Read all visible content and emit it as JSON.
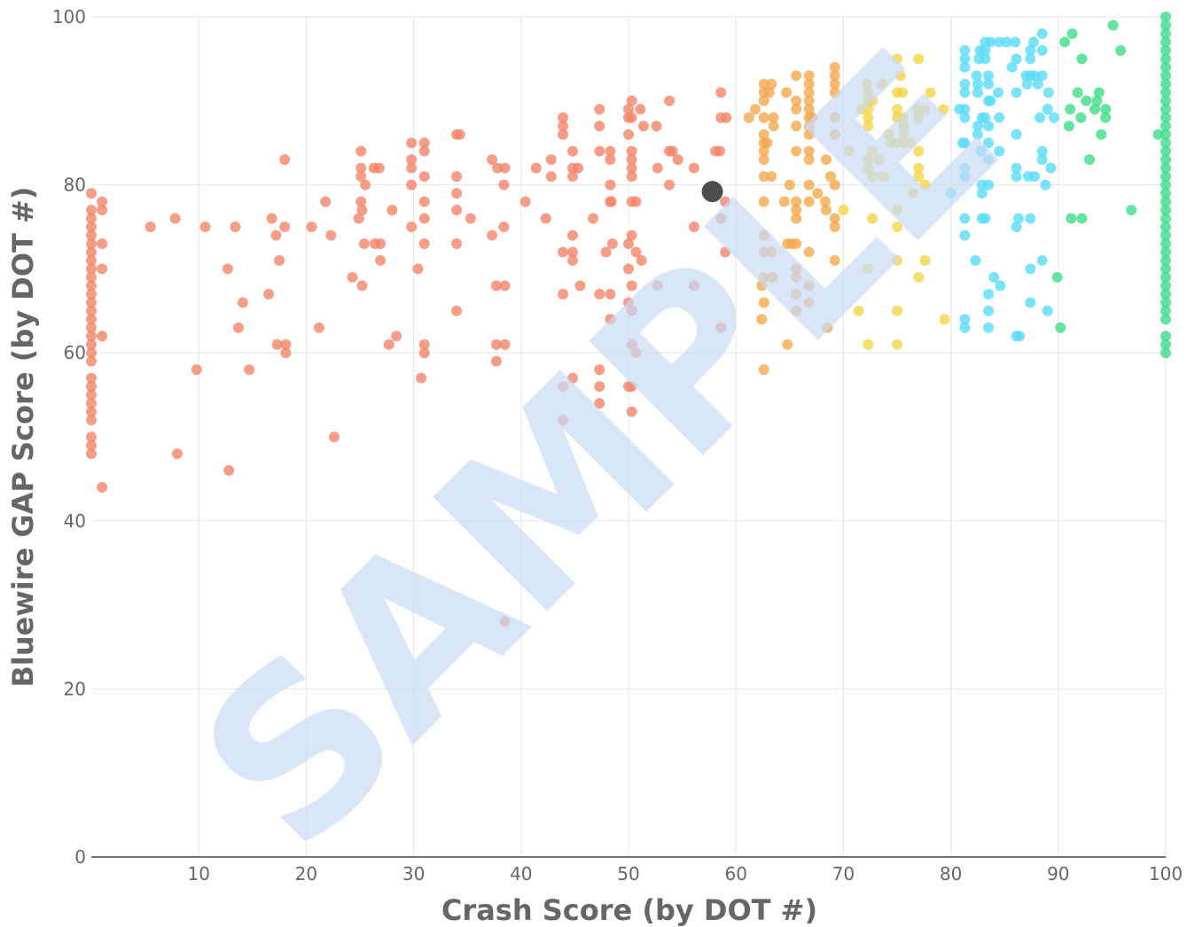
{
  "chart_data": {
    "type": "scatter",
    "x_label": "Crash Score (by DOT #)",
    "y_label": "Bluewire GAP Score (by DOT #)",
    "watermark": "SAMPLE",
    "xlim": [
      0,
      100
    ],
    "ylim": [
      0,
      100
    ],
    "xticks": [
      10,
      20,
      30,
      40,
      50,
      60,
      70,
      80,
      90,
      100
    ],
    "yticks": [
      0,
      20,
      40,
      60,
      80,
      100
    ],
    "grid": true,
    "series": [
      {
        "color": "#f4846a",
        "x": [
          0,
          0,
          0,
          0,
          0,
          0,
          0,
          0,
          0,
          0,
          0,
          0,
          0,
          0,
          0,
          0,
          0,
          0,
          0,
          0,
          0,
          0,
          0,
          0,
          0,
          0,
          0,
          0,
          0,
          1,
          1,
          1,
          1,
          1,
          1,
          5.5,
          7.8,
          8,
          9.8,
          10.6,
          12.7,
          12.8,
          13.4,
          13.7,
          14.1,
          14.7,
          16.5,
          16.8,
          17.2,
          17.3,
          17.5,
          18,
          18,
          18.1,
          18.1,
          20.5,
          21.2,
          21.8,
          22.3,
          22.6,
          24.3,
          24.9,
          25.1,
          25.1,
          25.1,
          25.1,
          25.2,
          25.2,
          25.4,
          25.5,
          26.3,
          26.4,
          26.8,
          26.9,
          26.9,
          27.7,
          28,
          28.4,
          29.8,
          29.8,
          29.8,
          29.8,
          29.8,
          30.4,
          30.7,
          31,
          31,
          31,
          31,
          31,
          31,
          31,
          31,
          34,
          34.3,
          34,
          34,
          34,
          34,
          34,
          35.3,
          37.3,
          37.3,
          37.8,
          37.7,
          37.7,
          37.7,
          38.5,
          38.4,
          38.4,
          38.5,
          38.5,
          38.5,
          40.4,
          41.4,
          42.3,
          42.8,
          42.8,
          43.9,
          43.9,
          43.9,
          43.9,
          43.9,
          43.9,
          43.9,
          44.8,
          44.8,
          44.8,
          44.8,
          44.8,
          44.8,
          44.8,
          45.3,
          45.5,
          46.7,
          47.3,
          47.3,
          47.3,
          47.3,
          47.3,
          47.3,
          47.3,
          47.9,
          48.3,
          48.3,
          48.3,
          48.3,
          48.4,
          48.5,
          48.3,
          48.3,
          50,
          50,
          50,
          50,
          50,
          50,
          50,
          50.3,
          50.3,
          50.3,
          50.3,
          50.3,
          50.3,
          50.3,
          50.3,
          50.3,
          50.3,
          50.3,
          50.3,
          50.3,
          50.7,
          50.7,
          50.7,
          51.1,
          51.2,
          51.4,
          52.6,
          52.7,
          52.7,
          53.8,
          53.8,
          53.8,
          54.1,
          54.6,
          56.1,
          56.1,
          56.1,
          58.1,
          58.6,
          58.6,
          58.5,
          58.6,
          58.6,
          59.1,
          59,
          59
        ],
        "values": [
          79,
          77,
          76,
          75,
          74,
          73,
          72,
          71,
          70,
          69,
          68,
          67,
          66,
          65,
          64,
          63,
          62,
          61,
          60,
          59,
          57,
          56,
          55,
          54,
          53,
          52,
          50,
          49,
          48,
          78,
          77,
          73,
          70,
          62,
          44,
          75,
          76,
          48,
          58,
          75,
          70,
          46,
          75,
          63,
          66,
          58,
          67,
          76,
          74,
          61,
          71,
          83,
          75,
          61,
          60,
          75,
          63,
          78,
          74,
          50,
          69,
          76,
          84,
          82,
          81,
          78,
          77,
          68,
          73,
          80,
          82,
          73,
          82,
          73,
          71,
          61,
          77,
          62,
          85,
          83,
          82,
          80,
          75,
          70,
          57,
          85,
          84,
          81,
          78,
          76,
          73,
          61,
          60,
          86,
          86,
          81,
          79,
          77,
          73,
          65,
          76,
          83,
          74,
          82,
          68,
          61,
          59,
          82,
          80,
          75,
          68,
          61,
          28,
          78,
          82,
          76,
          83,
          81,
          88,
          87,
          86,
          72,
          67,
          56,
          52,
          84,
          82,
          81,
          74,
          72,
          71,
          57,
          82,
          68,
          76,
          89,
          87,
          84,
          67,
          58,
          56,
          54,
          72,
          84,
          83,
          80,
          78,
          78,
          73,
          67,
          64,
          89,
          88,
          86,
          73,
          70,
          66,
          56,
          90,
          88,
          84,
          83,
          82,
          81,
          78,
          74,
          68,
          65,
          61,
          56,
          53,
          78,
          72,
          60,
          89,
          71,
          87,
          87,
          82,
          68,
          90,
          84,
          80,
          84,
          83,
          82,
          75,
          68,
          84,
          91,
          88,
          84,
          76,
          63,
          88,
          78,
          72
        ]
      },
      {
        "color": "#f5a94e",
        "x": [
          61.2,
          61.8,
          62.4,
          62.4,
          62.6,
          62.6,
          62.6,
          62.6,
          62.6,
          62.6,
          62.6,
          62.6,
          62.6,
          62.6,
          62.6,
          62.6,
          62.6,
          62.6,
          62.6,
          62.9,
          63.1,
          63.3,
          63.3,
          63.3,
          63.4,
          63.5,
          63.5,
          64.5,
          64.7,
          64.8,
          64.8,
          65,
          65.2,
          65.6,
          65.6,
          65.6,
          65.6,
          65.6,
          65.6,
          65.6,
          65.6,
          65.6,
          65.6,
          65.6,
          65.6,
          65.6,
          66.8,
          66.8,
          66.8,
          66.8,
          66.8,
          66.8,
          66.8,
          66.8,
          66.8,
          66.8,
          66.8,
          66.8,
          66.8,
          66.8,
          66.8,
          67.1,
          67.6,
          68.3,
          68.4,
          68.4,
          68.5,
          68.8,
          69.2,
          69.2,
          69.2,
          69.2,
          69.2,
          69.2,
          69.2,
          69.2,
          69.2,
          69.2
        ],
        "values": [
          88,
          89,
          64,
          68,
          92,
          91,
          90,
          88,
          86,
          85,
          84,
          83,
          81,
          78,
          74,
          72,
          69,
          66,
          58,
          85,
          91,
          92,
          81,
          72,
          69,
          87,
          88,
          78,
          91,
          73,
          61,
          80,
          73,
          93,
          90,
          89,
          87,
          84,
          78,
          77,
          76,
          73,
          70,
          69,
          67,
          65,
          93,
          92,
          91,
          90,
          89,
          88,
          87,
          86,
          84,
          83,
          80,
          78,
          72,
          68,
          66,
          88,
          79,
          78,
          77,
          83,
          63,
          81,
          94,
          93,
          92,
          91,
          88,
          86,
          80,
          76,
          75,
          71
        ]
      },
      {
        "color": "#f5d547",
        "x": [
          70,
          70.5,
          71.4,
          71.7,
          72.2,
          72.3,
          72.3,
          72.3,
          72.3,
          72.3,
          72.3,
          72.3,
          72.3,
          72.3,
          72.7,
          72.7,
          72.7,
          72.7,
          73.3,
          73.6,
          73.7,
          74.2,
          74.4,
          75,
          75,
          75,
          75,
          75,
          75,
          75,
          75,
          75,
          75,
          75.3,
          75.5,
          75.6,
          75.6,
          75.6,
          75.6,
          76.3,
          76.5,
          76.9,
          77,
          77,
          77,
          77,
          77,
          77,
          77.6,
          77.6,
          77.6,
          78.1,
          79.3,
          79.4
        ],
        "values": [
          77,
          84,
          65,
          89,
          92,
          91,
          90,
          89,
          88,
          87,
          83,
          82,
          70,
          61,
          90,
          84,
          81,
          76,
          83,
          92,
          81,
          86,
          85,
          95,
          91,
          89,
          88,
          85,
          77,
          75,
          71,
          65,
          61,
          93,
          91,
          88,
          87,
          86,
          85,
          85,
          79,
          89,
          95,
          88,
          84,
          82,
          81,
          69,
          89,
          80,
          71,
          91,
          89,
          64
        ]
      },
      {
        "color": "#5adcf7",
        "x": [
          80,
          80.8,
          81.1,
          81.3,
          81.3,
          81.3,
          81.3,
          81.3,
          81.3,
          81.3,
          81.3,
          81.3,
          81.3,
          81.3,
          81.3,
          81.3,
          81.3,
          82.3,
          82.4,
          82.5,
          82.5,
          82.5,
          82.5,
          82.6,
          82.7,
          82.8,
          82.9,
          82.9,
          82.9,
          82.9,
          83.2,
          83.2,
          83.2,
          83.2,
          83.2,
          83.5,
          83.5,
          83.5,
          83.5,
          83.5,
          83.5,
          83.5,
          83.5,
          83.5,
          83.5,
          83.7,
          83.7,
          84,
          84.4,
          84.5,
          84.5,
          84.5,
          84.6,
          85.2,
          85.7,
          86,
          86.1,
          86.1,
          86.1,
          86.1,
          86.1,
          86.1,
          86.1,
          86.3,
          86.4,
          87,
          87.1,
          87.2,
          87.4,
          87.4,
          87.4,
          87.4,
          87.4,
          87.4,
          87.7,
          87.8,
          87.8,
          88.1,
          88.3,
          88.5,
          88.5,
          88.5,
          88.5,
          88.5,
          88.5,
          88.8,
          89,
          89,
          89.1,
          89.3,
          89.6
        ],
        "values": [
          79,
          89,
          85,
          96,
          95,
          94,
          92,
          91,
          89,
          88,
          85,
          82,
          81,
          76,
          74,
          64,
          63,
          71,
          93,
          92,
          91,
          87,
          86,
          95,
          96,
          84,
          88,
          80,
          79,
          76,
          97,
          96,
          95,
          88,
          76,
          93,
          92,
          90,
          87,
          85,
          83,
          80,
          67,
          65,
          63,
          97,
          90,
          69,
          91,
          97,
          88,
          84,
          68,
          97,
          94,
          97,
          95,
          91,
          86,
          82,
          81,
          75,
          62,
          76,
          62,
          93,
          92,
          81,
          96,
          95,
          93,
          76,
          70,
          66,
          97,
          93,
          81,
          92,
          88,
          98,
          96,
          93,
          84,
          83,
          71,
          80,
          89,
          65,
          91,
          82,
          88
        ]
      },
      {
        "color": "#3ddc8a",
        "x": [
          89.9,
          90.2,
          90.6,
          91,
          91.1,
          91.2,
          91.3,
          91.8,
          92.1,
          92.2,
          92.2,
          92.6,
          92.9,
          93.4,
          93.6,
          93.8,
          94,
          94.4,
          94.4,
          95.1,
          95.8,
          96.8,
          99.3,
          100,
          100,
          100,
          100,
          100,
          100,
          100,
          100,
          100,
          100,
          100,
          100,
          100,
          100,
          100,
          100,
          100,
          100,
          100,
          100,
          100,
          100,
          100,
          100,
          100,
          100,
          100,
          100,
          100,
          100,
          100,
          100,
          100,
          100,
          100,
          100,
          100,
          100,
          100,
          100
        ],
        "values": [
          69,
          63,
          97,
          87,
          89,
          76,
          98,
          91,
          88,
          95,
          76,
          90,
          83,
          89,
          90,
          91,
          86,
          88,
          89,
          99,
          96,
          77,
          86,
          100,
          99,
          98,
          97,
          96,
          95,
          94,
          93,
          92,
          91,
          90,
          89,
          88,
          87,
          86,
          85,
          84,
          83,
          82,
          81,
          80,
          79,
          78,
          77,
          76,
          75,
          74,
          73,
          72,
          71,
          70,
          69,
          68,
          67,
          66,
          65,
          64,
          62,
          61,
          60
        ]
      }
    ],
    "highlight": {
      "x": 57.8,
      "y": 79.2,
      "color": "#3a3a3a"
    }
  }
}
